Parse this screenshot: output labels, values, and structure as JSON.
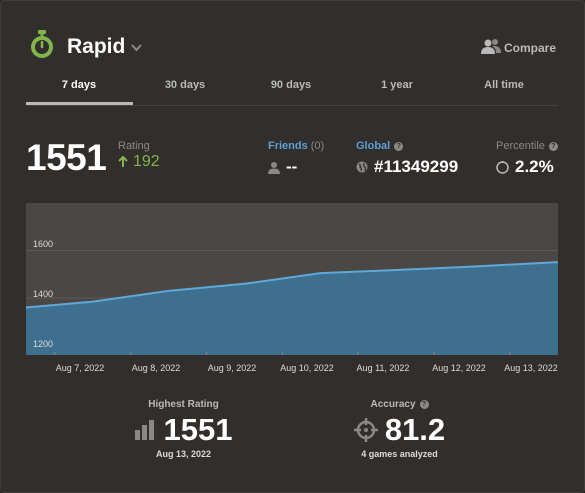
{
  "header": {
    "title": "Rapid",
    "compare_label": "Compare",
    "accent_color": "#81b64c"
  },
  "tabs": [
    {
      "label": "7 days",
      "active": true
    },
    {
      "label": "30 days",
      "active": false
    },
    {
      "label": "90 days",
      "active": false
    },
    {
      "label": "1 year",
      "active": false
    },
    {
      "label": "All time",
      "active": false
    }
  ],
  "rating": {
    "value": "1551",
    "label": "Rating",
    "change": "192",
    "change_color": "#81b64c"
  },
  "friends": {
    "label": "Friends",
    "count": "(0)",
    "value": "--"
  },
  "global": {
    "label": "Global",
    "value": "#11349299"
  },
  "percentile": {
    "label": "Percentile",
    "value": "2.2%"
  },
  "chart_data": {
    "type": "area",
    "y_ticks": [
      "1600",
      "1400",
      "1200"
    ],
    "x_labels": [
      "Aug 7, 2022",
      "Aug 8, 2022",
      "Aug 9, 2022",
      "Aug 10, 2022",
      "Aug 11, 2022",
      "Aug 12, 2022",
      "Aug 13, 2022"
    ],
    "x": [
      "Aug 6, 2022",
      "Aug 7, 2022",
      "Aug 8, 2022",
      "Aug 9, 2022",
      "Aug 10, 2022",
      "Aug 11, 2022",
      "Aug 12, 2022",
      "Aug 13, 2022"
    ],
    "values": [
      1360,
      1385,
      1430,
      1460,
      1505,
      1518,
      1532,
      1551
    ],
    "ylim": [
      1160,
      1800
    ],
    "grid": true,
    "line_color": "#5fa8d8",
    "fill_color": "#3f6f8f"
  },
  "highest": {
    "label": "Highest Rating",
    "value": "1551",
    "date": "Aug 13, 2022"
  },
  "accuracy": {
    "label": "Accuracy",
    "value": "81.2",
    "sub": "4 games analyzed"
  }
}
